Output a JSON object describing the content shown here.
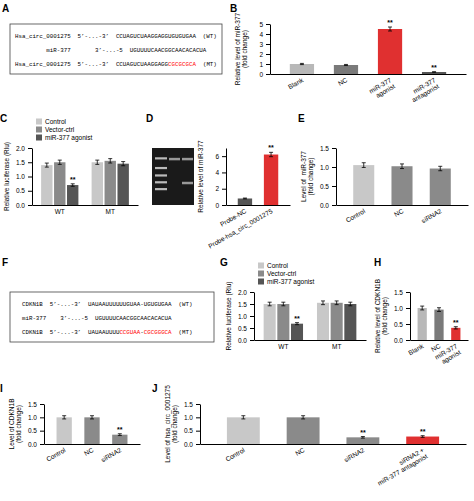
{
  "chart_data": [
    {
      "type": "text",
      "title": "A",
      "annotations": [
        [
          {
            "text": "Hsa_circ_0001275  5’-...-3’  CCUAGUCUAAGGAGGUGUGUGAA  (WT)",
            "color": "black"
          }
        ],
        [
          {
            "text": "         miR-377       3’-...-5  UGUUUUCAACGGCAACACACUA",
            "color": "black"
          }
        ],
        [
          {
            "text": "Hsa_circ_0001275  5’-...-3’  CCUAGUCUAAGGAGG",
            "color": "black"
          },
          {
            "text": "CGCGCGCA",
            "color": "red"
          },
          {
            "text": "  (MT)",
            "color": "black"
          }
        ]
      ]
    },
    {
      "type": "bar",
      "title": "B",
      "categories": [
        "Blank",
        "NC",
        "miR-377\nagonist",
        "miR-377\nantagonist"
      ],
      "values": [
        1.0,
        0.9,
        4.5,
        0.2
      ],
      "errors": [
        0.06,
        0.056,
        0.2,
        0.028
      ],
      "colors": [
        "#b8b8b8",
        "#7a7a7a",
        "#e03030",
        "#555555"
      ],
      "annotations": [
        null,
        null,
        "**",
        "**"
      ],
      "y_label": "Relative level of miR-377\n(fold change)",
      "ylim": [
        0,
        5
      ],
      "yticks": [
        0,
        1,
        2,
        3,
        4,
        5
      ]
    },
    {
      "type": "bar",
      "title": "C",
      "categories": [
        "WT",
        "MT"
      ],
      "series": [
        {
          "name": "Control",
          "color": "#c8c8c8",
          "values": [
            1.4,
            1.5
          ],
          "errors": [
            0.071,
            0.075
          ]
        },
        {
          "name": "Vector-ctrl",
          "color": "#8a8a8a",
          "values": [
            1.5,
            1.55
          ],
          "errors": [
            0.075,
            0.077
          ]
        },
        {
          "name": "miR-377 agonist",
          "color": "#555555",
          "values": [
            0.7,
            1.45
          ],
          "errors": [
            0.043,
            0.073
          ],
          "annotations": [
            "**",
            null
          ]
        }
      ],
      "legend": "upper left",
      "y_label": "Relative luciferase (Rlu)",
      "ylim": [
        0,
        2.0
      ],
      "yticks": [
        {
          "value": 0,
          "label": "0.0"
        },
        0.5,
        {
          "value": 1,
          "label": "1.0"
        },
        1.5,
        {
          "value": 2,
          "label": "2.0"
        }
      ]
    },
    {
      "type": "image",
      "title": "D"
    },
    {
      "type": "bar",
      "categories": [
        "Probe-NC",
        "Probe-hsa_circ_0001275"
      ],
      "values": [
        0.8,
        6.2
      ],
      "errors": [
        0.052,
        0.268
      ],
      "colors": [
        "#555555",
        "#e03030"
      ],
      "annotations": [
        null,
        "**"
      ],
      "y_label": "Relative level of miR-377",
      "ylim": [
        0,
        7
      ],
      "yticks": [
        0,
        2,
        4,
        6
      ]
    },
    {
      "type": "bar",
      "title": "E",
      "categories": [
        "Control",
        "NC",
        "siRNA2"
      ],
      "values": [
        1.05,
        1.02,
        0.96
      ],
      "errors": [
        0.062,
        0.0608,
        0.0584
      ],
      "colors": [
        "#c8c8c8",
        "#8a8a8a",
        "#8a8a8a"
      ],
      "y_label": "Level of  miR-377\n(fold change)",
      "ylim": [
        0,
        1.5
      ],
      "yticks": [
        {
          "value": 0,
          "label": "0.0"
        },
        0.5,
        {
          "value": 1,
          "label": "1.0"
        },
        1.5
      ]
    },
    {
      "type": "text",
      "title": "F",
      "annotations": [
        [
          {
            "text": "  CDKN1B  5’-...-3’  UAUAAUUUUUUGUAA-UGUGUGAA  (WT)",
            "color": "black"
          }
        ],
        [
          {
            "text": "  miR-377    3’-...-5  UGUUUUCAACGGCAACACACUA",
            "color": "black"
          }
        ],
        [
          {
            "text": "  CDKN1B  5’-...-3’  UAUAAUUUU",
            "color": "black"
          },
          {
            "text": "CCGUAA",
            "color": "red"
          },
          {
            "text": "-",
            "color": "black"
          },
          {
            "text": "CGCGGGCA",
            "color": "red"
          },
          {
            "text": "  (MT)",
            "color": "black"
          }
        ]
      ]
    },
    {
      "type": "bar",
      "title": "G",
      "categories": [
        "WT",
        "MT"
      ],
      "series": [
        {
          "name": "Control",
          "color": "#c8c8c8",
          "values": [
            1.5,
            1.55
          ],
          "errors": [
            0.075,
            0.077
          ]
        },
        {
          "name": "Vector-ctrl",
          "color": "#8a8a8a",
          "values": [
            1.5,
            1.55
          ],
          "errors": [
            0.075,
            0.077
          ]
        },
        {
          "name": "miR-377 agonist",
          "color": "#555555",
          "values": [
            0.68,
            1.5
          ],
          "errors": [
            0.0422,
            0.075
          ],
          "annotations": [
            "**",
            null
          ]
        }
      ],
      "legend": "upper left",
      "y_label": "Relative luciferase (Rlu)",
      "ylim": [
        0,
        2.0
      ],
      "yticks": [
        {
          "value": 0,
          "label": "0.0"
        },
        0.5,
        {
          "value": 1,
          "label": "1.0"
        },
        1.5,
        {
          "value": 2,
          "label": "2.0"
        }
      ]
    },
    {
      "type": "bar",
      "title": "H",
      "categories": [
        "Blank",
        "NC",
        "miR-377\nagonist"
      ],
      "values": [
        1.0,
        0.95,
        0.38
      ],
      "errors": [
        0.06,
        0.058,
        0.0352
      ],
      "colors": [
        "#b8b8b8",
        "#7a7a7a",
        "#e03030"
      ],
      "annotations": [
        null,
        null,
        "**"
      ],
      "y_label": "Relative level of CDKN1B\n(fold change)",
      "ylim": [
        0,
        1.5
      ],
      "yticks": [
        {
          "value": 0,
          "label": "0.0"
        },
        0.5,
        {
          "value": 1,
          "label": "1.0"
        },
        1.5
      ]
    },
    {
      "type": "bar",
      "title": "I",
      "categories": [
        "Control",
        "NC",
        "siRNA2"
      ],
      "values": [
        1.0,
        1.0,
        0.35
      ],
      "errors": [
        0.06,
        0.06,
        0.034
      ],
      "colors": [
        "#c8c8c8",
        "#8a8a8a",
        "#8a8a8a"
      ],
      "annotations": [
        null,
        null,
        "**"
      ],
      "y_label": "Level of CDKN1B\n(fold change)",
      "ylim": [
        0,
        1.5
      ],
      "yticks": [
        {
          "value": 0,
          "label": "0.0"
        },
        0.5,
        {
          "value": 1,
          "label": "1.0"
        },
        1.5
      ]
    },
    {
      "type": "bar",
      "title": "J",
      "categories": [
        "Control",
        "NC",
        "siRNA2",
        "siRNA2 +\nmiR-377 antagonist"
      ],
      "values": [
        1.0,
        1.0,
        0.25,
        0.28
      ],
      "errors": [
        0.06,
        0.06,
        0.03,
        0.0312
      ],
      "colors": [
        "#c8c8c8",
        "#8a8a8a",
        "#8a8a8a",
        "#e03030"
      ],
      "annotations": [
        null,
        null,
        "**",
        "**"
      ],
      "y_label": "Level of hsa_circ_0001275\n(fold change)",
      "ylim": [
        0,
        1.5
      ],
      "yticks": [
        {
          "value": 0,
          "label": "0.0"
        },
        0.5,
        {
          "value": 1,
          "label": "1.0"
        },
        1.5
      ]
    }
  ]
}
